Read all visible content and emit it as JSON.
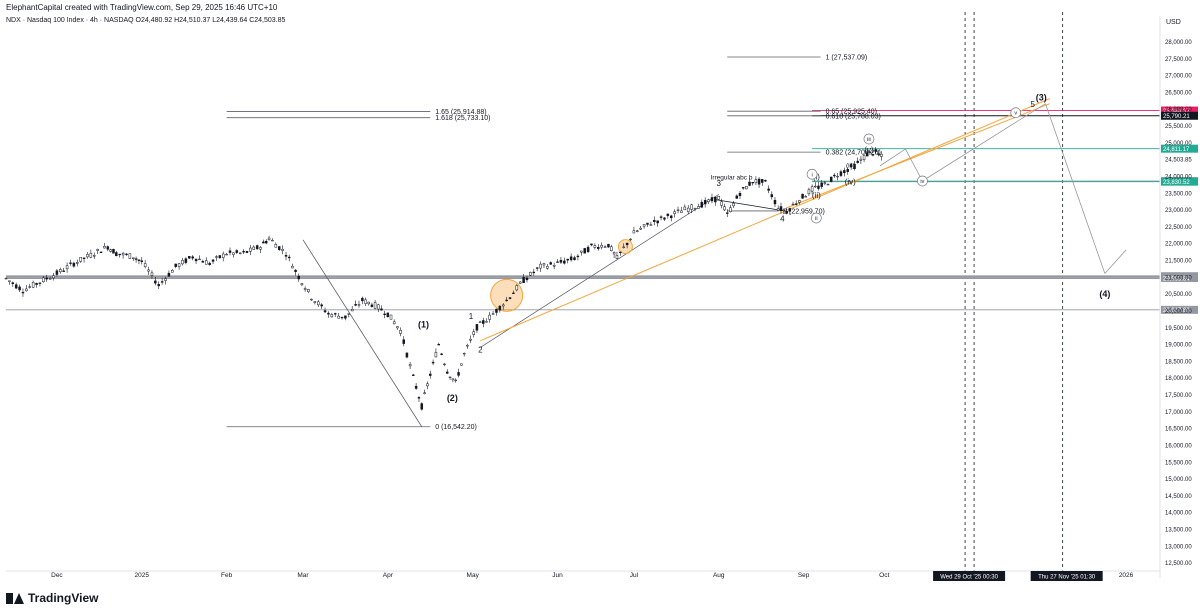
{
  "header": {
    "attribution": "ElephantCapital created with TradingView.com, Sep 29, 2025 16:46 UTC+10",
    "symbol_line": "NDX · Nasdaq 100 Index · 4h · NASDAQ  O24,480.92  H24,510.37  L24,439.64  C24,503.85",
    "currency": "USD"
  },
  "footer": {
    "logo_text": "TradingView"
  },
  "colors": {
    "candle": "#131722",
    "fib_line": "#5d606b",
    "orange": "#f7a43a",
    "green": "#22ab94",
    "red": "#f23645",
    "magenta": "#e91e63",
    "gray_line": "#9598a1"
  },
  "chart_data": {
    "type": "candlestick",
    "title": "NDX · Nasdaq 100 Index · 4h · NASDAQ",
    "ylabel": "USD",
    "ylim": [
      12400,
      28400
    ],
    "y_ticks": [
      12500,
      13000,
      13500,
      14000,
      14500,
      15000,
      15500,
      16000,
      16500,
      17000,
      17500,
      18000,
      18500,
      19000,
      19500,
      20000,
      20500,
      21000,
      21500,
      22000,
      22500,
      23000,
      23500,
      24000,
      24500,
      25000,
      25500,
      26000,
      26500,
      27000,
      27500,
      28000
    ],
    "y_tick_labels": [
      "12,500.00",
      "13,000.00",
      "13,500.00",
      "14,000.00",
      "14,500.00",
      "15,000.00",
      "15,500.00",
      "16,000.00",
      "16,500.00",
      "17,000.00",
      "17,500.00",
      "18,000.00",
      "18,500.00",
      "19,000.00",
      "19,500.00",
      "20,000.00",
      "20,500.00",
      "21,000.00",
      "21,500.00",
      "22,000.00",
      "22,500.00",
      "23,000.00",
      "23,500.00",
      "24,000.00",
      "24,503.85",
      "25,000.00",
      "25,500.00",
      "26,000.00",
      "26,500.00",
      "27,000.00",
      "27,500.00",
      "28,000.00"
    ],
    "x_axis_labels": [
      {
        "t": 0.0,
        "label": "Dec"
      },
      {
        "t": 1.0,
        "label": "2025"
      },
      {
        "t": 2.0,
        "label": "Feb"
      },
      {
        "t": 2.9,
        "label": "Mar"
      },
      {
        "t": 3.9,
        "label": "Apr"
      },
      {
        "t": 4.9,
        "label": "May"
      },
      {
        "t": 5.9,
        "label": "Jun"
      },
      {
        "t": 6.8,
        "label": "Jul"
      },
      {
        "t": 7.8,
        "label": "Aug"
      },
      {
        "t": 8.8,
        "label": "Sep"
      },
      {
        "t": 9.75,
        "label": "Oct"
      },
      {
        "t": 12.6,
        "label": "2026"
      }
    ],
    "x_time_badges": [
      {
        "t": 10.75,
        "label": "Wed 29 Oct '25  00:30"
      },
      {
        "t": 11.9,
        "label": "Thu 27 Nov '25  01:30"
      }
    ],
    "price_path": [
      [
        -0.6,
        20950
      ],
      [
        -0.4,
        20600
      ],
      [
        -0.2,
        20850
      ],
      [
        0.0,
        21100
      ],
      [
        0.2,
        21400
      ],
      [
        0.4,
        21650
      ],
      [
        0.6,
        21900
      ],
      [
        0.7,
        21700
      ],
      [
        0.9,
        21600
      ],
      [
        1.0,
        21450
      ],
      [
        1.2,
        20750
      ],
      [
        1.4,
        21300
      ],
      [
        1.6,
        21600
      ],
      [
        1.8,
        21400
      ],
      [
        2.0,
        21700
      ],
      [
        2.2,
        21700
      ],
      [
        2.4,
        21900
      ],
      [
        2.5,
        22150
      ],
      [
        2.7,
        21700
      ],
      [
        2.85,
        21000
      ],
      [
        3.0,
        20400
      ],
      [
        3.2,
        19900
      ],
      [
        3.4,
        19800
      ],
      [
        3.6,
        20300
      ],
      [
        3.75,
        20150
      ],
      [
        3.9,
        19900
      ],
      [
        4.05,
        19400
      ],
      [
        4.2,
        18000
      ],
      [
        4.3,
        17150
      ],
      [
        4.4,
        18100
      ],
      [
        4.5,
        19000
      ],
      [
        4.6,
        18200
      ],
      [
        4.7,
        17850
      ],
      [
        4.8,
        18700
      ],
      [
        4.95,
        19500
      ],
      [
        5.1,
        19800
      ],
      [
        5.3,
        20300
      ],
      [
        5.5,
        20900
      ],
      [
        5.7,
        21300
      ],
      [
        5.9,
        21400
      ],
      [
        6.1,
        21550
      ],
      [
        6.3,
        21900
      ],
      [
        6.5,
        21950
      ],
      [
        6.6,
        21550
      ],
      [
        6.8,
        22300
      ],
      [
        7.0,
        22600
      ],
      [
        7.2,
        22800
      ],
      [
        7.4,
        23000
      ],
      [
        7.6,
        23150
      ],
      [
        7.8,
        23350
      ],
      [
        7.9,
        22850
      ],
      [
        8.05,
        23500
      ],
      [
        8.2,
        23850
      ],
      [
        8.35,
        23800
      ],
      [
        8.5,
        23050
      ],
      [
        8.6,
        22950
      ],
      [
        8.75,
        23300
      ],
      [
        8.9,
        23600
      ],
      [
        9.05,
        23750
      ],
      [
        9.2,
        24050
      ],
      [
        9.4,
        24300
      ],
      [
        9.55,
        24650
      ],
      [
        9.65,
        24700
      ],
      [
        9.75,
        24500
      ]
    ],
    "horizontal_levels": [
      {
        "price": 25944.37,
        "label": "25,944.37",
        "color": "magenta"
      },
      {
        "price": 25790.21,
        "label": "25,790.21",
        "color": "black"
      },
      {
        "price": 24811.17,
        "label": "24,811.17",
        "color": "green"
      },
      {
        "price": 23847.51,
        "label": "23,847.51",
        "color": "gray"
      },
      {
        "price": 23830.52,
        "label": "23,830.52",
        "color": "green"
      },
      {
        "price": 21017.99,
        "label": "21,017.99",
        "color": "gray"
      },
      {
        "price": 20963.84,
        "label": "20,963.84",
        "color": "gray"
      },
      {
        "price": 20017.89,
        "label": "20,017.89",
        "color": "gray"
      }
    ],
    "fib_labels": [
      {
        "label": "1 (27,537.09)",
        "price": 27537.09
      },
      {
        "label": "0.65 (25,925.40)",
        "price": 25925.4
      },
      {
        "label": "0.618 (25,788.03)",
        "price": 25788.03
      },
      {
        "label": "0.382 (24,708.26)",
        "price": 24708.26
      },
      {
        "label": "0 (22,959.70)",
        "price": 22959.7
      },
      {
        "label": "1.65 (25,914.88)",
        "price": 25914.88
      },
      {
        "label": "1.618 (25,733.10)",
        "price": 25733.1
      },
      {
        "label": "0 (16,542.20)",
        "price": 16542.2
      }
    ],
    "wave_labels": [
      {
        "label": "(1)",
        "t": 4.32,
        "price": 19500
      },
      {
        "label": "(2)",
        "t": 4.66,
        "price": 17300
      },
      {
        "label": "1",
        "t": 4.88,
        "price": 19750
      },
      {
        "label": "2",
        "t": 4.99,
        "price": 18750
      },
      {
        "label": "3",
        "t": 7.8,
        "price": 23700
      },
      {
        "label": "4",
        "t": 8.55,
        "price": 22650
      },
      {
        "label": "Irregular abc b",
        "t": 7.95,
        "price": 23900
      },
      {
        "label": "(i)",
        "t": 8.95,
        "price": 23900
      },
      {
        "label": "(ii)",
        "t": 8.95,
        "price": 23350
      },
      {
        "label": "(iii)",
        "t": 9.35,
        "price": 24250
      },
      {
        "label": "(iv)",
        "t": 9.35,
        "price": 23750
      },
      {
        "label": "(v)",
        "t": 9.57,
        "price": 24700
      },
      {
        "label": "(3)",
        "t": 11.6,
        "price": 26250
      },
      {
        "label": "(4)",
        "t": 12.35,
        "price": 20400
      },
      {
        "label": "5",
        "t": 11.5,
        "price": 26050
      }
    ],
    "circled_labels": [
      {
        "label": "i",
        "t": 8.9,
        "price": 24050
      },
      {
        "label": "ii",
        "t": 8.95,
        "price": 22750
      },
      {
        "label": "iii",
        "t": 9.57,
        "price": 25100
      },
      {
        "label": "iv",
        "t": 10.2,
        "price": 23850
      },
      {
        "label": "v",
        "t": 11.3,
        "price": 25880
      }
    ]
  }
}
